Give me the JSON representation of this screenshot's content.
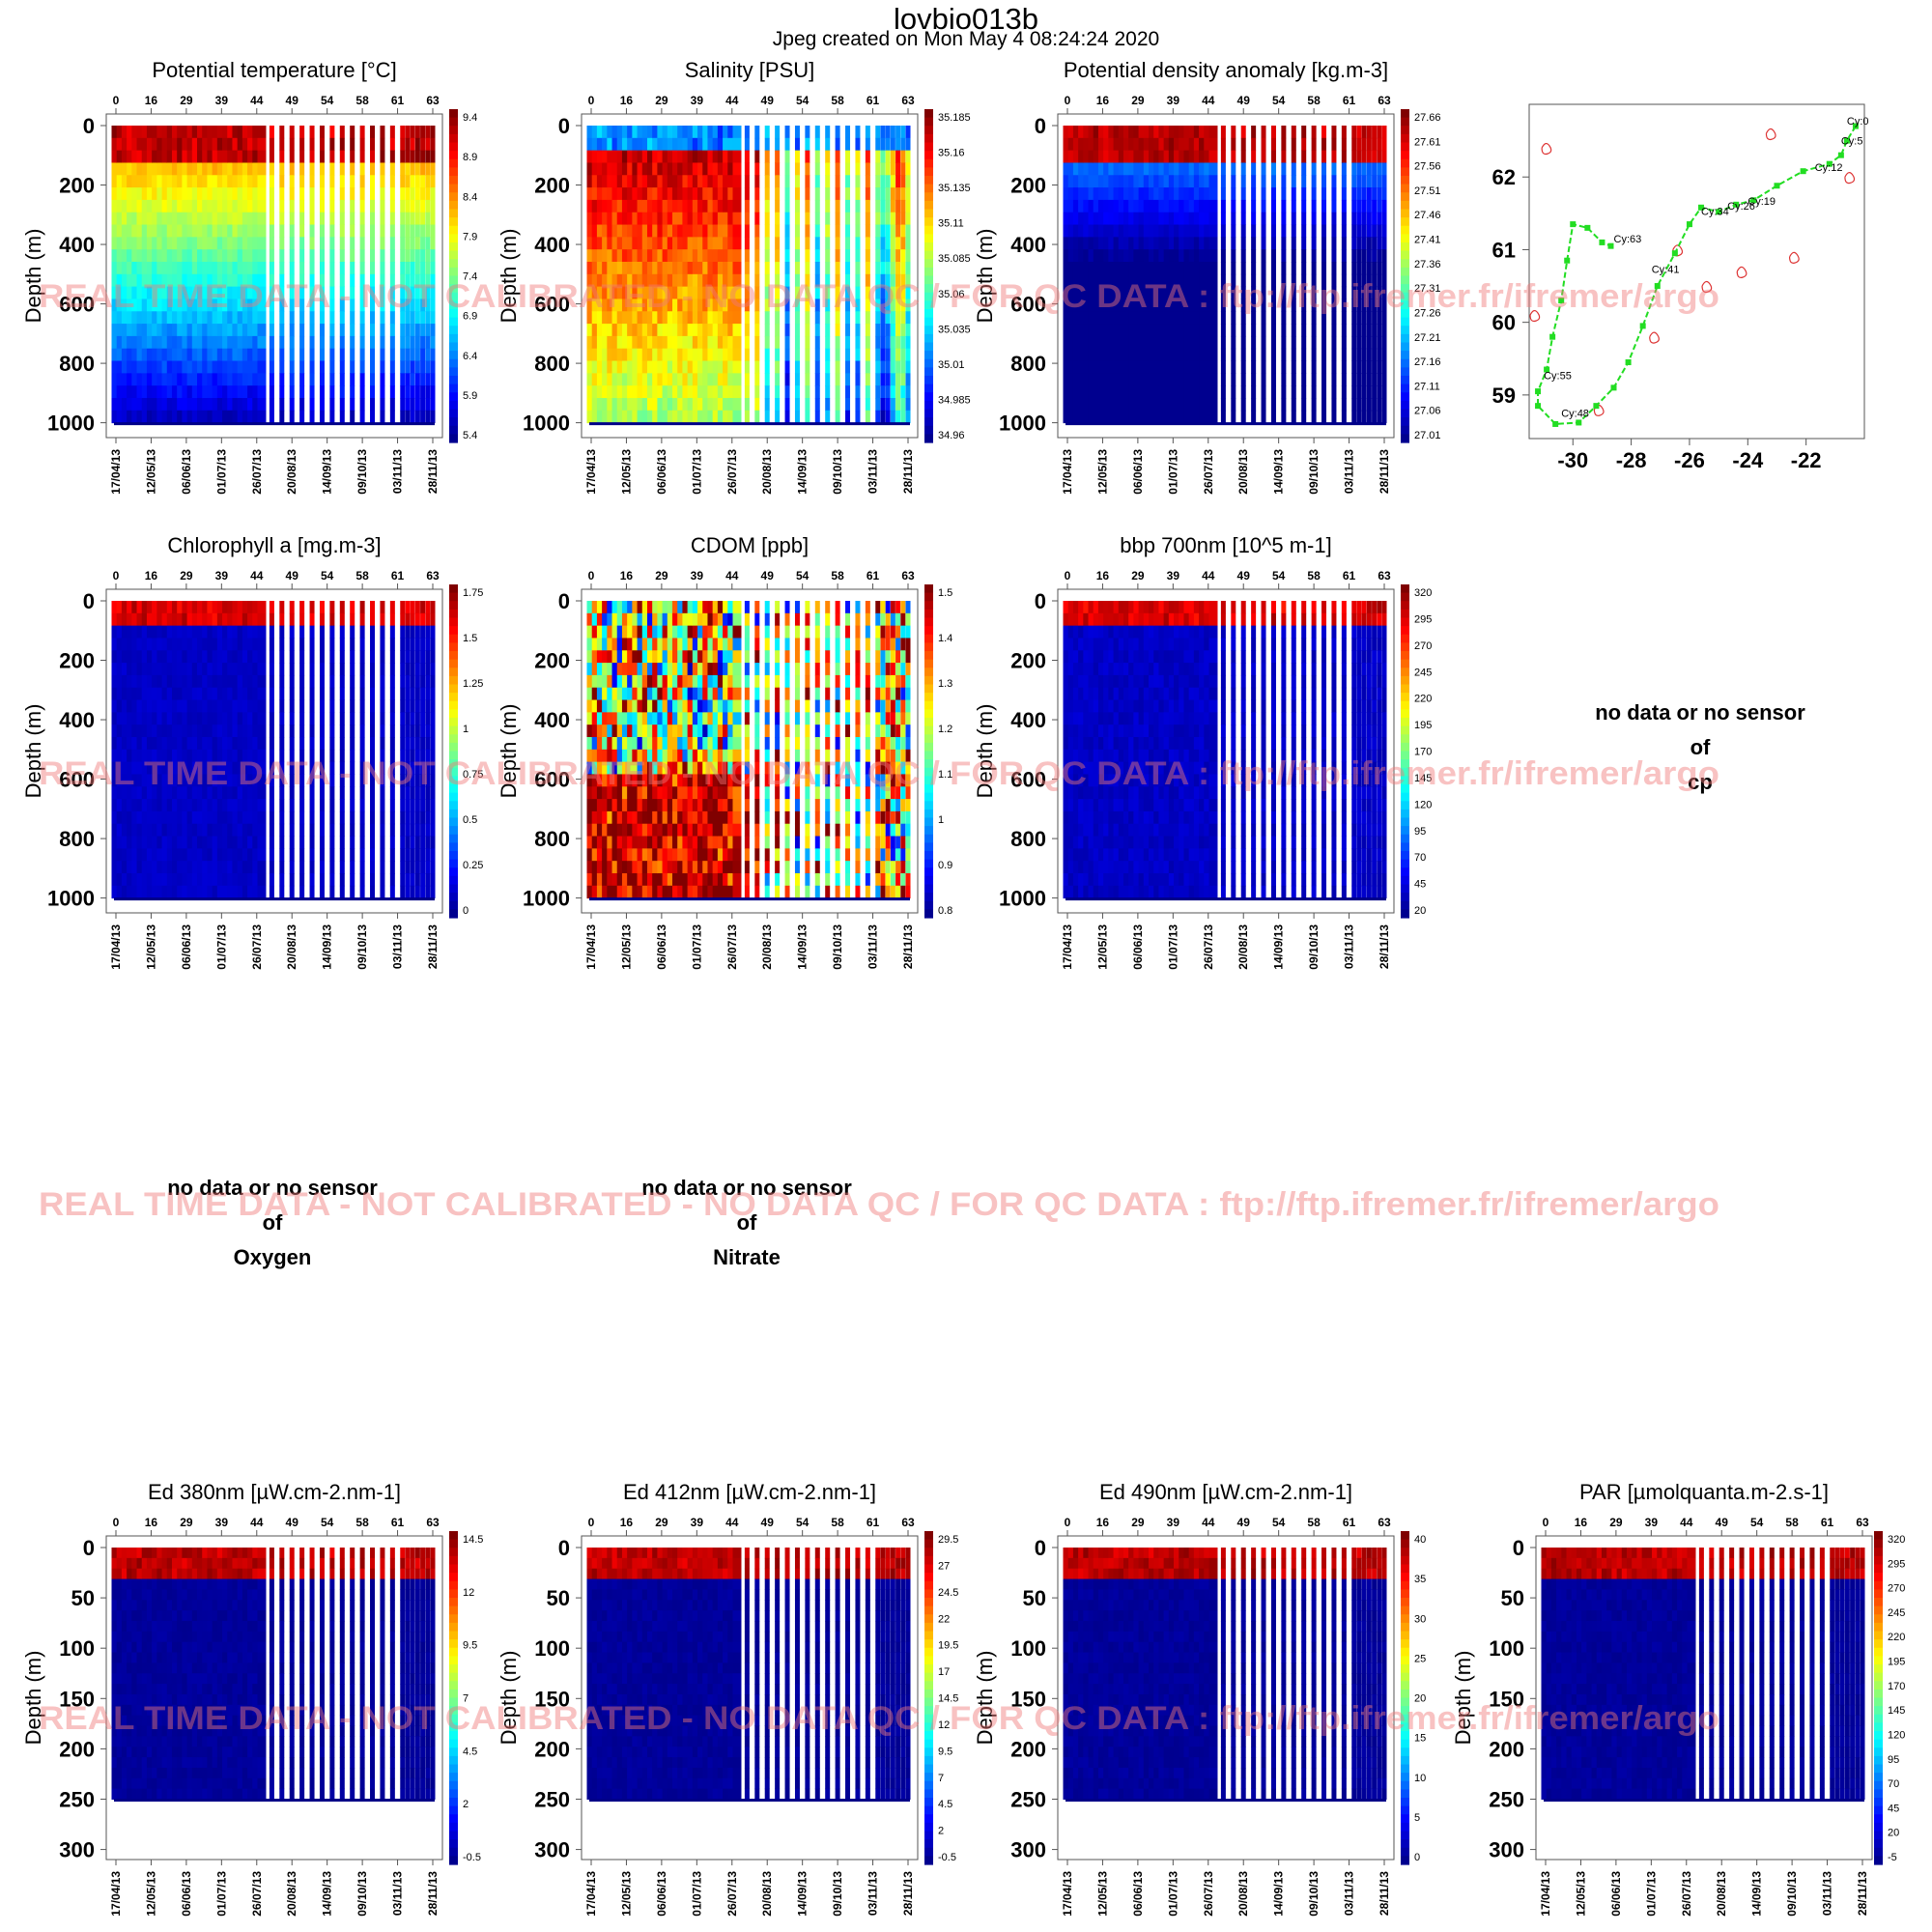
{
  "header": {
    "title": "lovbio013b",
    "subtitle": "Jpeg created on  Mon May  4 08:24:24 2020"
  },
  "watermark": "REAL TIME DATA - NOT CALIBRATED - NO DATA QC   /  FOR QC DATA : ftp://ftp.ifremer.fr/ifremer/argo",
  "nodata": {
    "line1": "no data or no sensor",
    "line2": "of",
    "cp": "cp",
    "oxygen": "Oxygen",
    "nitrate": "Nitrate"
  },
  "colors": {
    "jet": [
      "#00008f",
      "#0000ff",
      "#0080ff",
      "#00ffff",
      "#80ff80",
      "#ffff00",
      "#ff8000",
      "#ff0000",
      "#800000"
    ],
    "track": "#22dd22",
    "contour": "#dd3333"
  },
  "chart_data": [
    {
      "type": "heatmap",
      "title": "Potential temperature [°C]",
      "ylabel": "Depth (m)",
      "cycles_top": [
        "0",
        "16",
        "29",
        "39",
        "44",
        "49",
        "54",
        "58",
        "61",
        "63"
      ],
      "dates_bottom": [
        "17/04/13",
        "12/05/13",
        "06/06/13",
        "01/07/13",
        "26/07/13",
        "20/08/13",
        "14/09/13",
        "09/10/13",
        "03/11/13",
        "28/11/13"
      ],
      "yticks": [
        "0",
        "200",
        "400",
        "600",
        "800",
        "1000"
      ],
      "ylim": [
        0,
        1050
      ],
      "colorbar": [
        "9.4",
        "8.9",
        "8.4",
        "7.9",
        "7.4",
        "6.9",
        "6.4",
        "5.9",
        "5.4"
      ]
    },
    {
      "type": "heatmap",
      "title": "Salinity [PSU]",
      "ylabel": "Depth (m)",
      "cycles_top": [
        "0",
        "16",
        "29",
        "39",
        "44",
        "49",
        "54",
        "58",
        "61",
        "63"
      ],
      "dates_bottom": [
        "17/04/13",
        "12/05/13",
        "06/06/13",
        "01/07/13",
        "26/07/13",
        "20/08/13",
        "14/09/13",
        "09/10/13",
        "03/11/13",
        "28/11/13"
      ],
      "yticks": [
        "0",
        "200",
        "400",
        "600",
        "800",
        "1000"
      ],
      "ylim": [
        0,
        1050
      ],
      "colorbar": [
        "35.185",
        "35.16",
        "35.135",
        "35.11",
        "35.085",
        "35.06",
        "35.035",
        "35.01",
        "34.985",
        "34.96"
      ]
    },
    {
      "type": "heatmap",
      "title": "Potential density anomaly [kg.m-3]",
      "ylabel": "Depth (m)",
      "cycles_top": [
        "0",
        "16",
        "29",
        "39",
        "44",
        "49",
        "54",
        "58",
        "61",
        "63"
      ],
      "dates_bottom": [
        "17/04/13",
        "12/05/13",
        "06/06/13",
        "01/07/13",
        "26/07/13",
        "20/08/13",
        "14/09/13",
        "09/10/13",
        "03/11/13",
        "28/11/13"
      ],
      "yticks": [
        "0",
        "200",
        "400",
        "600",
        "800",
        "1000"
      ],
      "ylim": [
        0,
        1050
      ],
      "colorbar": [
        "27.66",
        "27.61",
        "27.56",
        "27.51",
        "27.46",
        "27.41",
        "27.36",
        "27.31",
        "27.26",
        "27.21",
        "27.16",
        "27.11",
        "27.06",
        "27.01"
      ]
    },
    {
      "type": "line",
      "xticks": [
        "-30",
        "-28",
        "-26",
        "-24",
        "-22"
      ],
      "yticks": [
        "62",
        "61",
        "60",
        "59"
      ],
      "xlim": [
        -31.5,
        -20
      ],
      "ylim": [
        58.4,
        63
      ],
      "track": [
        [
          -20.3,
          62.7
        ],
        [
          -20.6,
          62.5
        ],
        [
          -20.8,
          62.3
        ],
        [
          -21.2,
          62.18
        ],
        [
          -22.1,
          62.08
        ],
        [
          -23.0,
          61.88
        ],
        [
          -23.8,
          61.68
        ],
        [
          -24.4,
          61.62
        ],
        [
          -25.0,
          61.52
        ],
        [
          -25.6,
          61.58
        ],
        [
          -26.0,
          61.35
        ],
        [
          -26.5,
          60.95
        ],
        [
          -27.1,
          60.5
        ],
        [
          -27.6,
          59.95
        ],
        [
          -28.1,
          59.45
        ],
        [
          -28.6,
          59.1
        ],
        [
          -29.2,
          58.85
        ],
        [
          -29.8,
          58.62
        ],
        [
          -30.6,
          58.6
        ],
        [
          -31.2,
          58.85
        ],
        [
          -31.2,
          59.05
        ],
        [
          -30.9,
          59.35
        ],
        [
          -30.7,
          59.8
        ],
        [
          -30.4,
          60.3
        ],
        [
          -30.2,
          60.85
        ],
        [
          -30.0,
          61.35
        ],
        [
          -29.5,
          61.3
        ],
        [
          -29.0,
          61.1
        ],
        [
          -28.7,
          61.05
        ]
      ],
      "labels": [
        {
          "text": "Cy:0",
          "lon": -20.6,
          "lat": 62.72
        },
        {
          "text": "Cy:5",
          "lon": -20.8,
          "lat": 62.45
        },
        {
          "text": "Cy:12",
          "lon": -21.7,
          "lat": 62.08
        },
        {
          "text": "Cy:19",
          "lon": -24.0,
          "lat": 61.62
        },
        {
          "text": "Cy:26",
          "lon": -24.7,
          "lat": 61.55
        },
        {
          "text": "Cy:34",
          "lon": -25.6,
          "lat": 61.48
        },
        {
          "text": "Cy:41",
          "lon": -27.3,
          "lat": 60.68
        },
        {
          "text": "Cy:48",
          "lon": -30.4,
          "lat": 58.7
        },
        {
          "text": "Cy:55",
          "lon": -31.0,
          "lat": 59.22
        },
        {
          "text": "Cy:63",
          "lon": -28.6,
          "lat": 61.1
        }
      ]
    },
    {
      "type": "heatmap",
      "title": "Chlorophyll a [mg.m-3]",
      "ylabel": "Depth (m)",
      "cycles_top": [
        "0",
        "16",
        "29",
        "39",
        "44",
        "49",
        "54",
        "58",
        "61",
        "63"
      ],
      "dates_bottom": [
        "17/04/13",
        "12/05/13",
        "06/06/13",
        "01/07/13",
        "26/07/13",
        "20/08/13",
        "14/09/13",
        "09/10/13",
        "03/11/13",
        "28/11/13"
      ],
      "yticks": [
        "0",
        "200",
        "400",
        "600",
        "800",
        "1000"
      ],
      "ylim": [
        0,
        1050
      ],
      "colorbar": [
        "1.75",
        "1.5",
        "1.25",
        "1",
        "0.75",
        "0.5",
        "0.25",
        "0"
      ]
    },
    {
      "type": "heatmap",
      "title": "CDOM  [ppb]",
      "ylabel": "Depth (m)",
      "cycles_top": [
        "0",
        "16",
        "29",
        "39",
        "44",
        "49",
        "54",
        "58",
        "61",
        "63"
      ],
      "dates_bottom": [
        "17/04/13",
        "12/05/13",
        "06/06/13",
        "01/07/13",
        "26/07/13",
        "20/08/13",
        "14/09/13",
        "09/10/13",
        "03/11/13",
        "28/11/13"
      ],
      "yticks": [
        "0",
        "200",
        "400",
        "600",
        "800",
        "1000"
      ],
      "ylim": [
        0,
        1050
      ],
      "colorbar": [
        "1.5",
        "1.4",
        "1.3",
        "1.2",
        "1.1",
        "1",
        "0.9",
        "0.8"
      ]
    },
    {
      "type": "heatmap",
      "title": "bbp 700nm [10^5 m-1]",
      "ylabel": "Depth (m)",
      "cycles_top": [
        "0",
        "16",
        "29",
        "39",
        "44",
        "49",
        "54",
        "58",
        "61",
        "63"
      ],
      "dates_bottom": [
        "17/04/13",
        "12/05/13",
        "06/06/13",
        "01/07/13",
        "26/07/13",
        "20/08/13",
        "14/09/13",
        "09/10/13",
        "03/11/13",
        "28/11/13"
      ],
      "yticks": [
        "0",
        "200",
        "400",
        "600",
        "800",
        "1000"
      ],
      "ylim": [
        0,
        1050
      ],
      "colorbar": [
        "320",
        "295",
        "270",
        "245",
        "220",
        "195",
        "170",
        "145",
        "120",
        "95",
        "70",
        "45",
        "20"
      ]
    },
    {
      "type": "heatmap",
      "title": "Ed 380nm [µW.cm-2.nm-1]",
      "ylabel": "Depth (m)",
      "cycles_top": [
        "0",
        "16",
        "29",
        "39",
        "44",
        "49",
        "54",
        "58",
        "61",
        "63"
      ],
      "dates_bottom": [
        "17/04/13",
        "12/05/13",
        "06/06/13",
        "01/07/13",
        "26/07/13",
        "20/08/13",
        "14/09/13",
        "09/10/13",
        "03/11/13",
        "28/11/13"
      ],
      "yticks": [
        "0",
        "50",
        "100",
        "150",
        "200",
        "250",
        "300"
      ],
      "ylim": [
        0,
        310
      ],
      "colorbar": [
        "14.5",
        "12",
        "9.5",
        "7",
        "4.5",
        "2",
        "-0.5"
      ]
    },
    {
      "type": "heatmap",
      "title": "Ed 412nm [µW.cm-2.nm-1]",
      "ylabel": "Depth (m)",
      "cycles_top": [
        "0",
        "16",
        "29",
        "39",
        "44",
        "49",
        "54",
        "58",
        "61",
        "63"
      ],
      "dates_bottom": [
        "17/04/13",
        "12/05/13",
        "06/06/13",
        "01/07/13",
        "26/07/13",
        "20/08/13",
        "14/09/13",
        "09/10/13",
        "03/11/13",
        "28/11/13"
      ],
      "yticks": [
        "0",
        "50",
        "100",
        "150",
        "200",
        "250",
        "300"
      ],
      "ylim": [
        0,
        310
      ],
      "colorbar": [
        "29.5",
        "27",
        "24.5",
        "22",
        "19.5",
        "17",
        "14.5",
        "12",
        "9.5",
        "7",
        "4.5",
        "2",
        "-0.5"
      ]
    },
    {
      "type": "heatmap",
      "title": "Ed 490nm [µW.cm-2.nm-1]",
      "ylabel": "Depth (m)",
      "cycles_top": [
        "0",
        "16",
        "29",
        "39",
        "44",
        "49",
        "54",
        "58",
        "61",
        "63"
      ],
      "dates_bottom": [
        "17/04/13",
        "12/05/13",
        "06/06/13",
        "01/07/13",
        "26/07/13",
        "20/08/13",
        "14/09/13",
        "09/10/13",
        "03/11/13",
        "28/11/13"
      ],
      "yticks": [
        "0",
        "50",
        "100",
        "150",
        "200",
        "250",
        "300"
      ],
      "ylim": [
        0,
        310
      ],
      "colorbar": [
        "40",
        "35",
        "30",
        "25",
        "20",
        "15",
        "10",
        "5",
        "0"
      ]
    },
    {
      "type": "heatmap",
      "title": "PAR [µmolquanta.m-2.s-1]",
      "ylabel": "Depth (m)",
      "cycles_top": [
        "0",
        "16",
        "29",
        "39",
        "44",
        "49",
        "54",
        "58",
        "61",
        "63"
      ],
      "dates_bottom": [
        "17/04/13",
        "12/05/13",
        "06/06/13",
        "01/07/13",
        "26/07/13",
        "20/08/13",
        "14/09/13",
        "09/10/13",
        "03/11/13",
        "28/11/13"
      ],
      "yticks": [
        "0",
        "50",
        "100",
        "150",
        "200",
        "250",
        "300"
      ],
      "ylim": [
        0,
        310
      ],
      "colorbar": [
        "320",
        "295",
        "270",
        "245",
        "220",
        "195",
        "170",
        "145",
        "120",
        "95",
        "70",
        "45",
        "20",
        "-5"
      ]
    }
  ]
}
